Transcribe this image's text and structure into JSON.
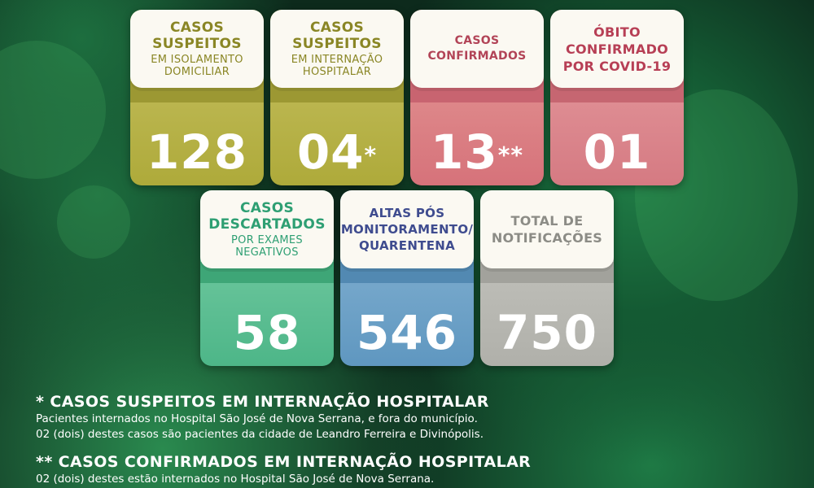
{
  "cards": {
    "suspeitos_isolamento": {
      "title": "CASOS\nSUSPEITOS",
      "subtitle": "EM ISOLAMENTO\nDOMICILIAR",
      "value": "128",
      "mark": ""
    },
    "suspeitos_internacao": {
      "title": "CASOS\nSUSPEITOS",
      "subtitle": "EM INTERNAÇÃO\nHOSPITALAR",
      "value": "04",
      "mark": "*"
    },
    "confirmados": {
      "title": "CASOS\nCONFIRMADOS",
      "value": "13",
      "mark": "**"
    },
    "obito": {
      "title": "ÓBITO\nCONFIRMADO\nPOR COVID-19",
      "value": "01"
    },
    "descartados": {
      "title": "CASOS\nDESCARTADOS",
      "subtitle": "POR EXAMES\nNEGATIVOS",
      "value": "58"
    },
    "altas": {
      "title": "ALTAS PÓS\nMONITORAMENTO/\nQUARENTENA",
      "value": "546"
    },
    "notificacoes": {
      "title": "TOTAL DE\nNOTIFICAÇÕES",
      "value": "750"
    }
  },
  "notes": [
    {
      "title": "* CASOS SUSPEITOS EM INTERNAÇÃO HOSPITALAR",
      "lines": [
        "Pacientes internados no Hospital São José de Nova Serrana, e fora do município.",
        "02 (dois) destes casos são pacientes da cidade de Leandro Ferreira e Divinópolis."
      ]
    },
    {
      "title": "** CASOS CONFIRMADOS EM INTERNAÇÃO HOSPITALAR",
      "lines": [
        "02 (dois) destes estão internados no Hospital São José de Nova Serrana."
      ]
    }
  ],
  "colors": {
    "background": "#0d2a1c",
    "yellow": "#aeaa3a",
    "red": "#d6727a",
    "pink": "#d57a82",
    "green": "#4db688",
    "blue": "#5f97c0",
    "gray": "#b0b0aa"
  }
}
